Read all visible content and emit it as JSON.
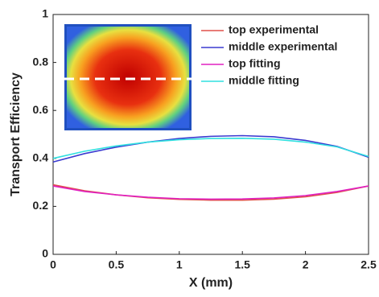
{
  "chart_data": {
    "type": "line",
    "xlabel": "X (mm)",
    "ylabel": "Transport Efficiency",
    "x": [
      0,
      0.25,
      0.5,
      0.75,
      1,
      1.25,
      1.5,
      1.75,
      2,
      2.25,
      2.5
    ],
    "series": [
      {
        "name": "top experimental",
        "color": "#e0504a",
        "values": [
          0.29,
          0.265,
          0.248,
          0.236,
          0.229,
          0.226,
          0.226,
          0.23,
          0.24,
          0.258,
          0.285
        ]
      },
      {
        "name": "middle experimental",
        "color": "#3a3ad0",
        "values": [
          0.385,
          0.42,
          0.447,
          0.468,
          0.483,
          0.492,
          0.495,
          0.49,
          0.475,
          0.45,
          0.405
        ]
      },
      {
        "name": "top fitting",
        "color": "#e020c0",
        "values": [
          0.285,
          0.262,
          0.248,
          0.238,
          0.232,
          0.23,
          0.231,
          0.235,
          0.245,
          0.262,
          0.285
        ]
      },
      {
        "name": "middle fitting",
        "color": "#30e0e0",
        "values": [
          0.4,
          0.43,
          0.452,
          0.468,
          0.478,
          0.483,
          0.484,
          0.48,
          0.468,
          0.448,
          0.408
        ]
      }
    ],
    "xlim": [
      0,
      2.5
    ],
    "xticks": [
      0,
      0.5,
      1,
      1.5,
      2,
      2.5
    ],
    "ylim": [
      0,
      1
    ],
    "yticks": [
      0,
      0.2,
      0.4,
      0.6,
      0.8,
      1
    ],
    "grid": false,
    "legend": "top-right"
  }
}
